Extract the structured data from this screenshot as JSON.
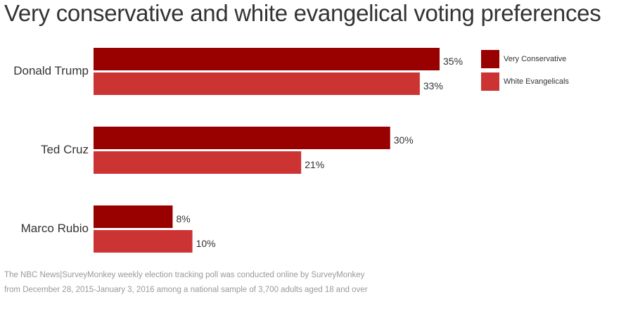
{
  "chart_data": {
    "type": "bar",
    "orientation": "horizontal",
    "title": "Very conservative and white evangelical voting preferences",
    "categories": [
      "Donald Trump",
      "Ted Cruz",
      "Marco Rubio"
    ],
    "series": [
      {
        "name": "Very Conservative",
        "color": "#990000",
        "values": [
          35,
          30,
          8
        ],
        "labels": [
          "35%",
          "30%",
          "8%"
        ]
      },
      {
        "name": "White Evangelicals",
        "color": "#cc3333",
        "values": [
          33,
          21,
          10
        ],
        "labels": [
          "33%",
          "21%",
          "10%"
        ]
      }
    ],
    "xlabel": "",
    "ylabel": "",
    "value_suffix": "%",
    "xlim": [
      0,
      35
    ],
    "grid": false,
    "legend_position": "top-right"
  },
  "footnote": {
    "line1": "The NBC News|SurveyMonkey weekly election tracking poll was conducted online by SurveyMonkey",
    "line2": "from December 28, 2015-January 3, 2016 among a national sample of 3,700 adults aged 18 and over"
  }
}
